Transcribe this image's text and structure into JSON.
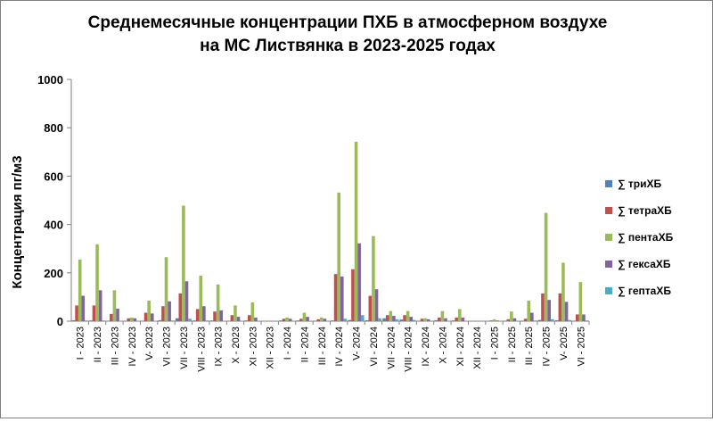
{
  "chart_data": {
    "type": "bar",
    "title_lines": [
      "Среднемесячные концентрации ПХБ в атмосферном воздухе",
      "на МС  Листвянка  в 2023-2025 годах"
    ],
    "xlabel": "",
    "ylabel": "Концентрация пг/м3",
    "ylim": [
      0,
      1000
    ],
    "yticks": [
      "0",
      "200",
      "400",
      "600",
      "800",
      "1000"
    ],
    "grid": false,
    "legend_position": "right",
    "categories": [
      "I - 2023",
      "II - 2023",
      "III - 2023",
      "IV - 2023",
      "V- 2023",
      "VI - 2023",
      "VII - 2023",
      "VIII - 2023",
      "IX - 2023",
      "X - 2023",
      "XI - 2023",
      "XII - 2023",
      "I - 2024",
      "II - 2024",
      "III - 2024",
      "IV - 2024",
      "V- 2024",
      "VI - 2024",
      "VII - 2024",
      "VIII - 2024",
      "IX - 2024",
      "X - 2024",
      "XI - 2024",
      "XII - 2024",
      "I - 2025",
      "II - 2025",
      "III - 2025",
      "IV - 2025",
      "V- 2025",
      "VI - 2025"
    ],
    "series": [
      {
        "name": "∑ триХБ",
        "color": "#4F81BD",
        "values": [
          4,
          3,
          2,
          1,
          2,
          4,
          12,
          3,
          3,
          2,
          3,
          0,
          3,
          3,
          2,
          3,
          5,
          4,
          12,
          7,
          2,
          4,
          3,
          0,
          1,
          2,
          2,
          5,
          4,
          2
        ]
      },
      {
        "name": "∑ тетраХБ",
        "color": "#C0504D",
        "values": [
          65,
          65,
          30,
          12,
          35,
          62,
          115,
          50,
          40,
          25,
          25,
          0,
          10,
          10,
          8,
          195,
          215,
          105,
          25,
          25,
          10,
          15,
          15,
          0,
          3,
          8,
          10,
          115,
          115,
          28
        ]
      },
      {
        "name": "∑ пентаХБ",
        "color": "#9BBB59",
        "values": [
          255,
          318,
          128,
          15,
          85,
          265,
          478,
          188,
          152,
          65,
          78,
          0,
          15,
          35,
          15,
          532,
          742,
          352,
          42,
          42,
          12,
          42,
          50,
          0,
          8,
          40,
          85,
          448,
          242,
          162
        ]
      },
      {
        "name": "∑ гексаХБ",
        "color": "#8064A2",
        "values": [
          105,
          128,
          52,
          12,
          32,
          82,
          165,
          62,
          45,
          18,
          15,
          0,
          10,
          18,
          10,
          185,
          322,
          132,
          22,
          18,
          8,
          12,
          15,
          0,
          3,
          12,
          35,
          88,
          80,
          28
        ]
      },
      {
        "name": "∑ гептаХБ",
        "color": "#4BACC6",
        "values": [
          3,
          3,
          2,
          1,
          2,
          3,
          10,
          3,
          2,
          2,
          2,
          0,
          2,
          2,
          2,
          10,
          25,
          12,
          8,
          5,
          2,
          2,
          2,
          0,
          1,
          2,
          3,
          8,
          5,
          3
        ]
      }
    ]
  }
}
